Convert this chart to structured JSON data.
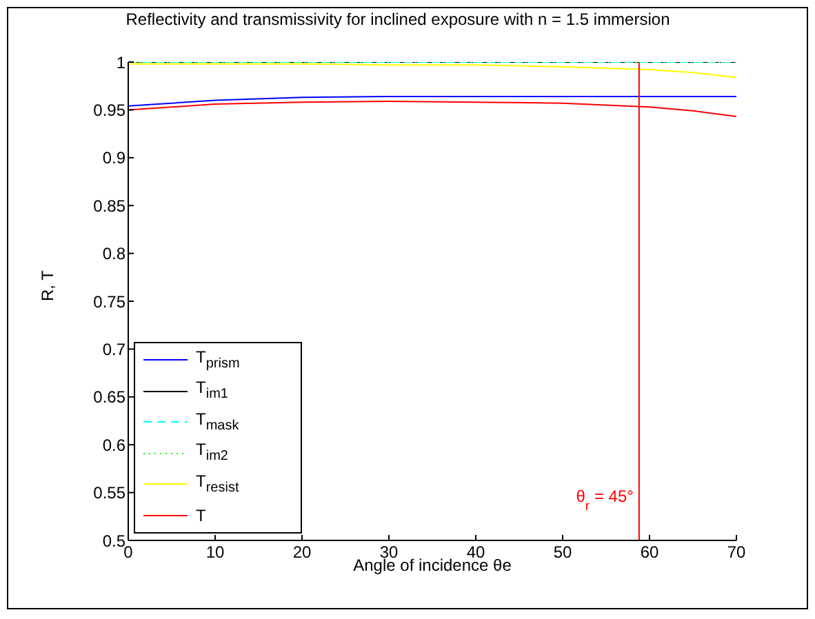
{
  "chart_data": {
    "type": "line",
    "title": "Reflectivity and transmissivity for inclined exposure with n = 1.5 immersion",
    "xlabel": "Angle of incidence θe",
    "ylabel": "R, T",
    "x": [
      0,
      10,
      20,
      30,
      40,
      50,
      60,
      65,
      70
    ],
    "series": [
      {
        "name": "T$_{prism}$",
        "color": "#0000ff",
        "values": [
          0.954,
          0.96,
          0.963,
          0.964,
          0.964,
          0.964,
          0.964,
          0.964,
          0.964
        ]
      },
      {
        "name": "T$_{im1}$",
        "color": "#000000",
        "values": [
          1,
          1,
          1,
          1,
          1,
          1,
          1,
          1,
          1
        ]
      },
      {
        "name": "T$_{mask}$",
        "color": "#00ffff",
        "line_style": "dashed",
        "values": [
          1,
          1,
          1,
          1,
          1,
          1,
          1,
          1,
          1
        ]
      },
      {
        "name": "T$_{im2}$",
        "color": "#00ff00",
        "line_style": "dotted",
        "values": [
          1,
          1,
          1,
          1,
          1,
          1,
          1,
          1,
          1
        ]
      },
      {
        "name": "T$_{resist}$",
        "color": "#ffff00",
        "values": [
          0.998,
          0.998,
          0.998,
          0.997,
          0.997,
          0.995,
          0.992,
          0.989,
          0.984
        ]
      },
      {
        "name": "T",
        "color": "#ff0000",
        "values": [
          0.95,
          0.956,
          0.958,
          0.959,
          0.958,
          0.957,
          0.953,
          0.949,
          0.943
        ]
      }
    ],
    "xlim": [
      0,
      70
    ],
    "xticks": [
      0,
      10,
      20,
      30,
      40,
      50,
      60,
      70
    ],
    "ylim": [
      0.5,
      1
    ],
    "yticks": [
      0.5,
      0.55,
      0.6,
      0.65,
      0.7,
      0.75,
      0.8,
      0.85,
      0.9,
      0.95,
      1
    ],
    "ref_lines": [
      {
        "axis": "x",
        "value": 58.8,
        "color": "#ff0000"
      }
    ],
    "annotations": [
      "θ$_{r}$ = 45°"
    ],
    "grid": false,
    "legend": "bottom left",
    "marker": "none",
    "line_style": "solid"
  }
}
